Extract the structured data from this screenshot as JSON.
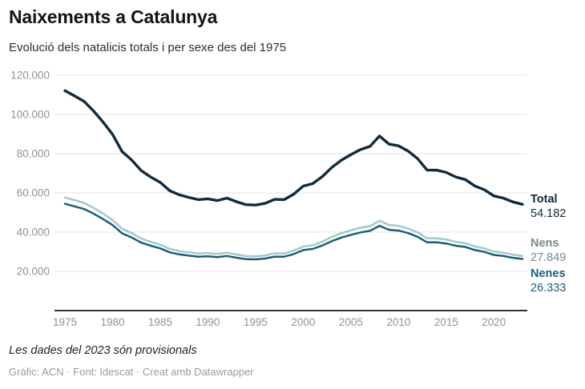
{
  "header": {
    "title": "Naixements a Catalunya",
    "subtitle": "Evolució dels natalicis totals i per sexe des del 1975"
  },
  "chart_data": {
    "type": "line",
    "title": "Naixements a Catalunya",
    "subtitle": "Evolució dels natalicis totals i per sexe des del 1975",
    "xlabel": "",
    "ylabel": "",
    "xlim": [
      1975,
      2023
    ],
    "ylim": [
      0,
      120000
    ],
    "grid": "horizontal",
    "legend_position": "end-of-line-labels",
    "grid_color": "#e5e5e5",
    "baseline_color": "#333333",
    "tick_label_color": "#929292",
    "y_ticks": {
      "values": [
        20000,
        40000,
        60000,
        80000,
        100000,
        120000
      ],
      "labels": [
        "20.000",
        "40.000",
        "60.000",
        "80.000",
        "100.000",
        "120.000"
      ]
    },
    "x_ticks": {
      "values": [
        1975,
        1980,
        1985,
        1990,
        1995,
        2000,
        2005,
        2010,
        2015,
        2020
      ],
      "labels": [
        "1975",
        "1980",
        "1985",
        "1990",
        "1995",
        "2000",
        "2005",
        "2010",
        "2015",
        "2020"
      ]
    },
    "x": [
      1975,
      1976,
      1977,
      1978,
      1979,
      1980,
      1981,
      1982,
      1983,
      1984,
      1985,
      1986,
      1987,
      1988,
      1989,
      1990,
      1991,
      1992,
      1993,
      1994,
      1995,
      1996,
      1997,
      1998,
      1999,
      2000,
      2001,
      2002,
      2003,
      2004,
      2005,
      2006,
      2007,
      2008,
      2009,
      2010,
      2011,
      2012,
      2013,
      2014,
      2015,
      2016,
      2017,
      2018,
      2019,
      2020,
      2021,
      2022,
      2023
    ],
    "series": [
      {
        "name": "Total",
        "color": "#0f2b3d",
        "label_color": "#0f2b3d",
        "end_label": "54.182",
        "end_value": 54182,
        "values": [
          112110,
          109478,
          106690,
          101780,
          96115,
          89825,
          81078,
          76776,
          71399,
          68092,
          65330,
          61107,
          59033,
          57704,
          56555,
          56976,
          56076,
          57364,
          55529,
          54004,
          53809,
          54657,
          56701,
          56572,
          59359,
          63489,
          64722,
          68315,
          72980,
          76687,
          79547,
          82077,
          83716,
          89024,
          84849,
          84015,
          81353,
          77438,
          71591,
          71589,
          70450,
          68134,
          66803,
          63566,
          61597,
          58464,
          57357,
          55397,
          54182
        ]
      },
      {
        "name": "Nens",
        "color": "#aac7c7",
        "label_color": "#79898c",
        "end_label": "27.849",
        "end_value": 27849,
        "values": [
          57680,
          56326,
          54892,
          52366,
          49451,
          46215,
          41715,
          39501,
          36735,
          35033,
          33612,
          31440,
          30372,
          29689,
          29098,
          29314,
          28851,
          29514,
          28570,
          27785,
          27685,
          28121,
          29173,
          29106,
          30540,
          32665,
          33300,
          35148,
          37548,
          39455,
          40927,
          42229,
          43072,
          45803,
          43655,
          43226,
          41856,
          39842,
          36834,
          36833,
          36247,
          35055,
          34370,
          32705,
          31692,
          30080,
          29511,
          28502,
          27849
        ]
      },
      {
        "name": "Nenes",
        "color": "#1a5f7a",
        "label_color": "#1a5f7a",
        "end_label": "26.333",
        "end_value": 26333,
        "values": [
          54430,
          53152,
          51798,
          49414,
          46664,
          43610,
          39363,
          37275,
          34664,
          33059,
          31718,
          29667,
          28661,
          28015,
          27457,
          27662,
          27225,
          27850,
          26959,
          26219,
          26124,
          26536,
          27528,
          27466,
          28819,
          30824,
          31422,
          33167,
          35432,
          37232,
          38620,
          39848,
          40644,
          43221,
          41194,
          40789,
          39497,
          37596,
          34757,
          34756,
          34203,
          33079,
          32433,
          30861,
          29905,
          28384,
          27846,
          26895,
          26333
        ]
      }
    ]
  },
  "footer": {
    "note": "Les dades del 2023 són provisionals",
    "credits": "Gràfic: ACN · Font: Idescat · Creat amb Datawrapper"
  }
}
